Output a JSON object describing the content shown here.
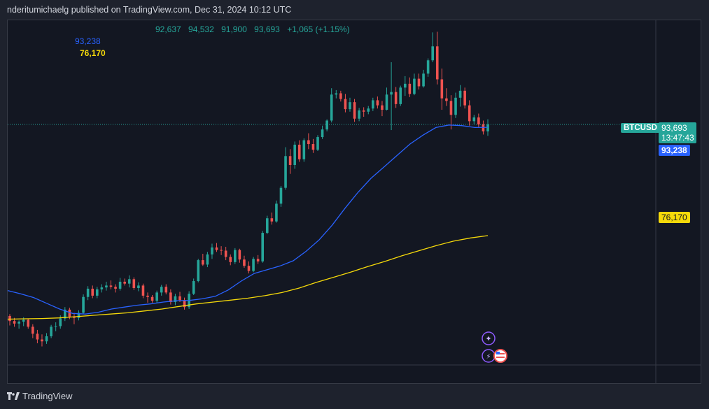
{
  "header": {
    "text": "nderitumichaelg published on TradingView.com, Dec 31, 2024 10:12 UTC"
  },
  "ohlc": {
    "open": "92,637",
    "high": "94,532",
    "low": "91,900",
    "close": "93,693",
    "change": "+1,065 (+1.15%)"
  },
  "ma_labels": {
    "ma1": "93,238",
    "ma2": "76,170"
  },
  "price_scale": {
    "symbol": "BTCUSD",
    "last_price": "93,693",
    "countdown": "13:47:43",
    "ma1": "93,238",
    "ma2": "76,170"
  },
  "colors": {
    "up": "#26a69a",
    "down": "#ef5350",
    "ma1": "#2962ff",
    "ma2": "#f5d90a",
    "bg": "#131722"
  },
  "footer": {
    "brand": "TradingView"
  },
  "chart_data": {
    "type": "candlestick",
    "series": [
      {
        "candles": [
          [
            63500,
            63800,
            62000,
            62700
          ],
          [
            62700,
            63200,
            61800,
            62300
          ],
          [
            62300,
            62800,
            61500,
            62600
          ],
          [
            62600,
            63300,
            61900,
            62900
          ],
          [
            62900,
            63100,
            61500,
            61800
          ],
          [
            61800,
            62200,
            60000,
            60700
          ],
          [
            60700,
            61300,
            59200,
            59800
          ],
          [
            59800,
            60600,
            58700,
            59500
          ],
          [
            59500,
            60800,
            59100,
            60300
          ],
          [
            60300,
            62100,
            60000,
            61800
          ],
          [
            61800,
            62500,
            61100,
            61900
          ],
          [
            61900,
            63600,
            61500,
            63100
          ],
          [
            63100,
            64900,
            62700,
            64500
          ],
          [
            64500,
            64800,
            63000,
            63400
          ],
          [
            63400,
            64000,
            62200,
            63200
          ],
          [
            63200,
            64400,
            62800,
            64000
          ],
          [
            64000,
            66900,
            63800,
            66500
          ],
          [
            66500,
            68200,
            66000,
            67800
          ],
          [
            67800,
            68300,
            66300,
            66700
          ],
          [
            66700,
            68100,
            66300,
            67700
          ],
          [
            67700,
            68500,
            67200,
            68000
          ],
          [
            68000,
            68900,
            67500,
            68300
          ],
          [
            68300,
            69100,
            67700,
            68100
          ],
          [
            68100,
            68500,
            67200,
            67800
          ],
          [
            67800,
            69500,
            67500,
            68900
          ],
          [
            68900,
            69400,
            68300,
            68600
          ],
          [
            68600,
            69900,
            68000,
            69300
          ],
          [
            69300,
            69600,
            67600,
            67900
          ],
          [
            67900,
            68800,
            67400,
            68300
          ],
          [
            68300,
            68600,
            66300,
            66700
          ],
          [
            66700,
            67200,
            65600,
            66500
          ],
          [
            66500,
            66800,
            65600,
            65900
          ],
          [
            65900,
            67500,
            65600,
            67200
          ],
          [
            67200,
            68400,
            66700,
            68100
          ],
          [
            68100,
            68500,
            66900,
            67200
          ],
          [
            67200,
            67700,
            65300,
            65700
          ],
          [
            65700,
            67000,
            65200,
            66600
          ],
          [
            66600,
            67300,
            65700,
            66000
          ],
          [
            66000,
            66400,
            64500,
            64900
          ],
          [
            64900,
            67400,
            64600,
            67000
          ],
          [
            67000,
            69400,
            66800,
            69000
          ],
          [
            69000,
            72500,
            68800,
            72300
          ],
          [
            72300,
            73300,
            71400,
            71600
          ],
          [
            71600,
            73600,
            71200,
            73200
          ],
          [
            73200,
            74900,
            72500,
            74300
          ],
          [
            74300,
            75000,
            73600,
            73900
          ],
          [
            73900,
            74500,
            73100,
            73800
          ],
          [
            73800,
            74400,
            72300,
            72800
          ],
          [
            72800,
            73200,
            71500,
            72000
          ],
          [
            72000,
            74200,
            71700,
            73900
          ],
          [
            73900,
            74100,
            71900,
            72400
          ],
          [
            72400,
            73000,
            71100,
            71400
          ],
          [
            71400,
            72100,
            70200,
            70600
          ],
          [
            70600,
            72800,
            70400,
            72500
          ],
          [
            72500,
            73100,
            71700,
            72100
          ],
          [
            72100,
            76900,
            71900,
            76600
          ],
          [
            76600,
            79300,
            76400,
            78900
          ],
          [
            78900,
            79800,
            77900,
            78400
          ],
          [
            78400,
            81700,
            78200,
            81200
          ],
          [
            81200,
            84000,
            80700,
            83700
          ],
          [
            83700,
            90100,
            83400,
            88700
          ],
          [
            88700,
            89800,
            85900,
            87300
          ],
          [
            87300,
            91000,
            86700,
            90500
          ],
          [
            90500,
            91200,
            87800,
            88200
          ],
          [
            88200,
            91500,
            87800,
            91200
          ],
          [
            91200,
            92300,
            89800,
            90600
          ],
          [
            90600,
            91400,
            89200,
            89700
          ],
          [
            89700,
            92000,
            89500,
            91700
          ],
          [
            91700,
            93500,
            91400,
            92900
          ],
          [
            92900,
            94500,
            92600,
            94300
          ],
          [
            94300,
            99400,
            94000,
            98400
          ],
          [
            98400,
            99100,
            97800,
            98600
          ],
          [
            98600,
            99000,
            97300,
            97700
          ],
          [
            97700,
            98500,
            95600,
            96100
          ],
          [
            96100,
            97900,
            95700,
            97200
          ],
          [
            97200,
            97700,
            94100,
            94600
          ],
          [
            94600,
            96300,
            94200,
            95900
          ],
          [
            95900,
            96400,
            94900,
            95700
          ],
          [
            95700,
            96600,
            95300,
            96200
          ],
          [
            96200,
            97900,
            95800,
            97500
          ],
          [
            97500,
            98100,
            96200,
            96700
          ],
          [
            96700,
            97400,
            95000,
            96000
          ],
          [
            96000,
            99500,
            95900,
            98400
          ],
          [
            98400,
            103500,
            92800,
            98800
          ],
          [
            98800,
            99600,
            96300,
            96900
          ],
          [
            96900,
            99800,
            96600,
            99500
          ],
          [
            99500,
            101300,
            98200,
            100100
          ],
          [
            100100,
            101100,
            98000,
            98500
          ],
          [
            98500,
            101700,
            98300,
            100900
          ],
          [
            100900,
            101700,
            99200,
            99700
          ],
          [
            99700,
            102300,
            99500,
            101700
          ],
          [
            101700,
            104100,
            101200,
            103800
          ],
          [
            103800,
            108200,
            103500,
            106000
          ],
          [
            106000,
            108300,
            100000,
            100800
          ],
          [
            100800,
            102500,
            96000,
            97800
          ],
          [
            97800,
            99400,
            96600,
            97400
          ],
          [
            97400,
            98300,
            92900,
            95200
          ],
          [
            95200,
            98700,
            94700,
            97900
          ],
          [
            97900,
            99900,
            96500,
            99000
          ],
          [
            99000,
            99500,
            96200,
            96700
          ],
          [
            96700,
            97500,
            93500,
            94200
          ],
          [
            94200,
            95200,
            93700,
            94800
          ],
          [
            94800,
            95400,
            93300,
            93700
          ],
          [
            93700,
            94300,
            92100,
            92600
          ],
          [
            92600,
            94500,
            91900,
            93700
          ]
        ]
      }
    ],
    "moving_averages": [
      {
        "values": [
          67500,
          67000,
          66400,
          65500,
          64600,
          63900,
          63800,
          64100,
          64600,
          64900,
          65200,
          65400,
          65700,
          65900,
          65950,
          66200,
          66600,
          67600,
          69000,
          70200,
          70800,
          71400,
          72200,
          73700,
          75500,
          77800,
          80500,
          83000,
          85200,
          87000,
          88800,
          90600,
          92000,
          93200,
          93600,
          93500,
          93200,
          93238
        ]
      },
      {
        "values": [
          63000,
          63050,
          63100,
          63200,
          63400,
          63600,
          63800,
          64000,
          64300,
          64600,
          65000,
          65400,
          65700,
          66000,
          66300,
          66700,
          67200,
          67900,
          68800,
          69600,
          70400,
          71300,
          72100,
          73000,
          73800,
          74600,
          75300,
          75800,
          76170
        ]
      }
    ],
    "ylim": [
      56000,
      110000
    ]
  }
}
